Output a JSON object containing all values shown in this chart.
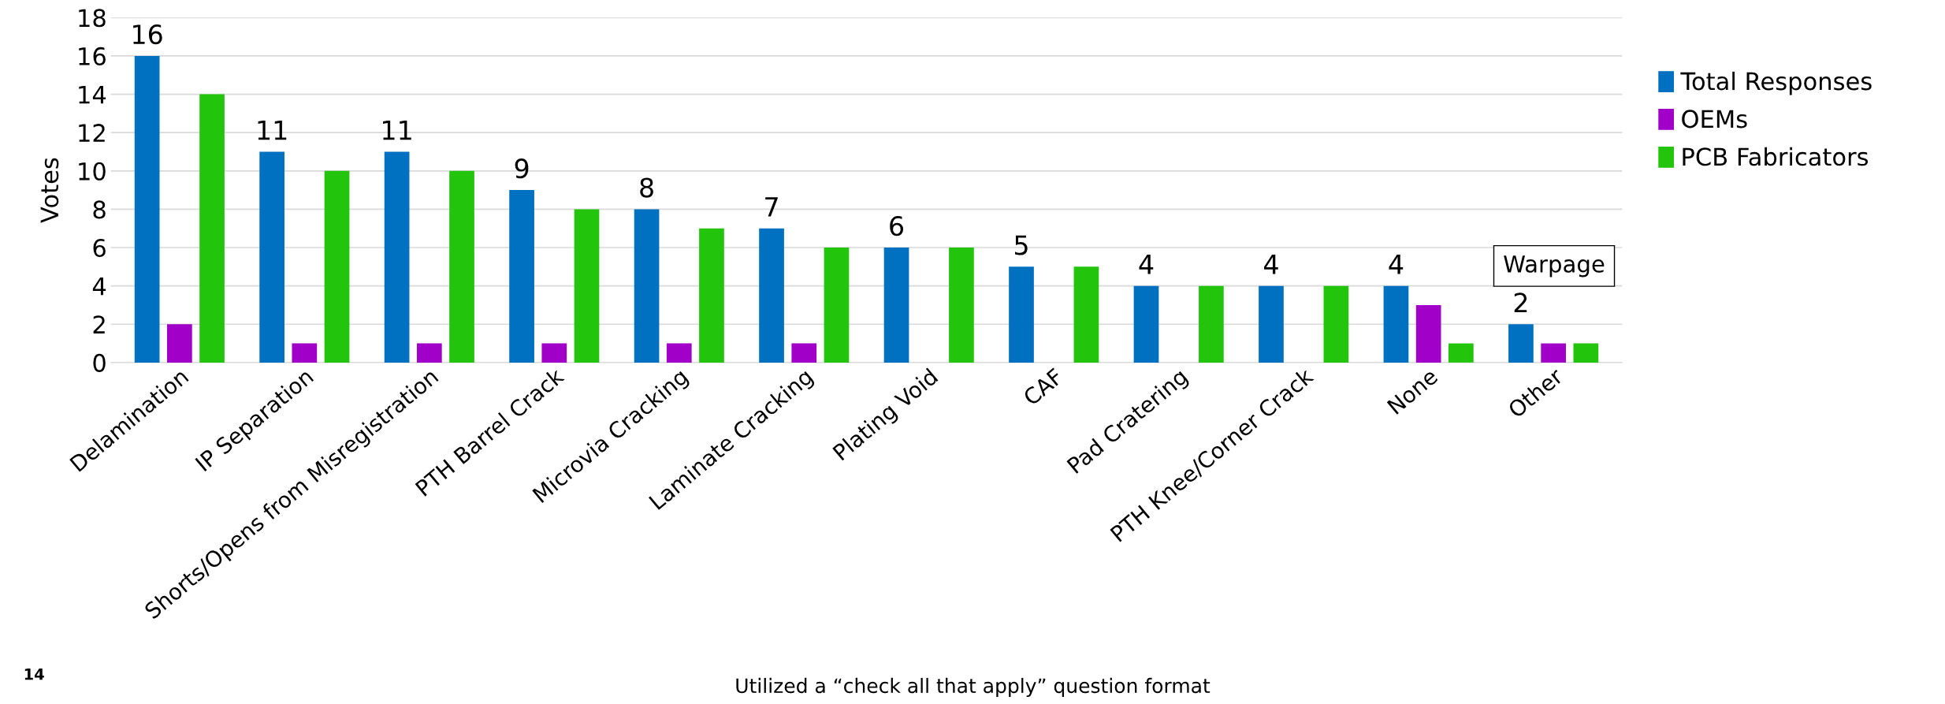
{
  "chart_data": {
    "type": "bar",
    "ylabel": "Votes",
    "categories": [
      "Delamination",
      "IP Separation",
      "Shorts/Opens from Misregistration",
      "PTH Barrel Crack",
      "Microvia Cracking",
      "Laminate Cracking",
      "Plating Void",
      "CAF",
      "Pad Cratering",
      "PTH Knee/Corner Crack",
      "None",
      "Other"
    ],
    "series": [
      {
        "name": "Total Responses",
        "color": "#0070c0",
        "values": [
          16,
          11,
          11,
          9,
          8,
          7,
          6,
          5,
          4,
          4,
          4,
          2
        ],
        "value_labels": [
          "16",
          "11",
          "11",
          "9",
          "8",
          "7",
          "6",
          "5",
          "4",
          "4",
          "4",
          "2"
        ]
      },
      {
        "name": "OEMs",
        "color": "#a000c8",
        "values": [
          2,
          1,
          1,
          1,
          1,
          1,
          0,
          0,
          0,
          0,
          3,
          1
        ]
      },
      {
        "name": "PCB Fabricators",
        "color": "#22c40c",
        "values": [
          14,
          10,
          10,
          8,
          7,
          6,
          6,
          5,
          4,
          4,
          1,
          1
        ]
      }
    ],
    "ylim": [
      0,
      18
    ],
    "yticks": [
      0,
      2,
      4,
      6,
      8,
      10,
      12,
      14,
      16,
      18
    ],
    "grid": "y",
    "legend": "right",
    "annotations": [
      "Warpage",
      "Utilized a “check all that apply” question format",
      "14"
    ]
  }
}
